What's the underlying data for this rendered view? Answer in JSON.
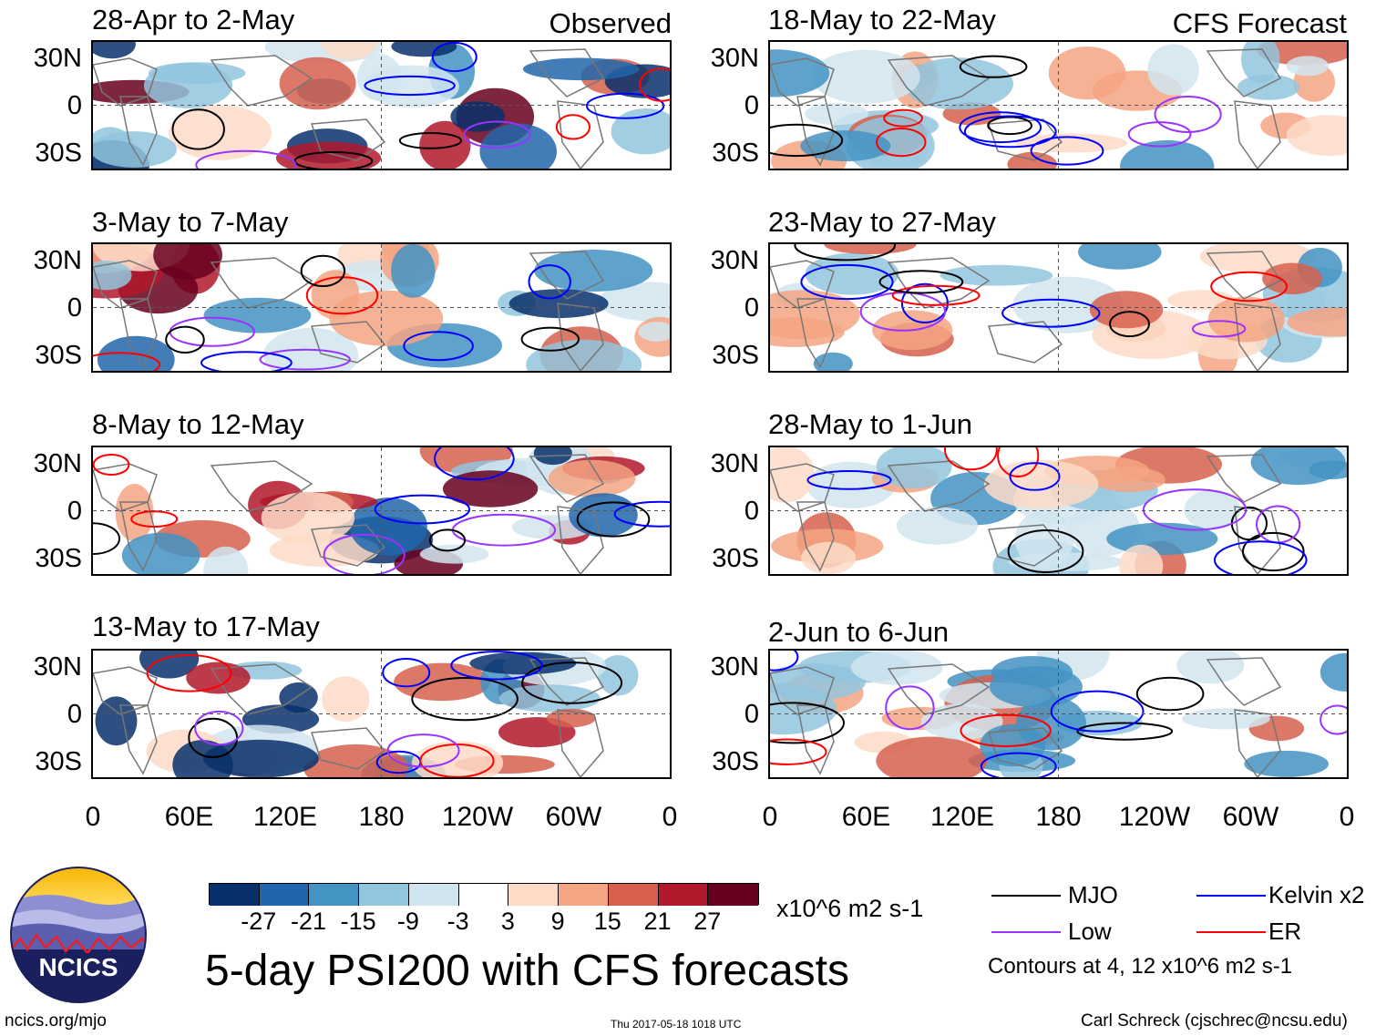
{
  "chart_data": {
    "type": "heatmap",
    "title": "5-day PSI200 with CFS forecasts",
    "variable": "PSI200",
    "units": "x10^6 m2 s-1",
    "observed_label": "Observed",
    "forecast_label": "CFS Forecast",
    "x_ticks": [
      "0",
      "60E",
      "120E",
      "180",
      "120W",
      "60W",
      "0"
    ],
    "y_ticks": [
      "30N",
      "0",
      "30S"
    ],
    "xlim": [
      0,
      360
    ],
    "ylim": [
      -40,
      40
    ],
    "panels_observed": [
      {
        "period": "28-Apr to 2-May"
      },
      {
        "period": "3-May to 7-May"
      },
      {
        "period": "8-May to 12-May"
      },
      {
        "period": "13-May to 17-May"
      }
    ],
    "panels_forecast": [
      {
        "period": "18-May to 22-May"
      },
      {
        "period": "23-May to 27-May"
      },
      {
        "period": "28-May to 1-Jun"
      },
      {
        "period": "2-Jun to 6-Jun"
      }
    ],
    "colorbar": {
      "labels": [
        "-27",
        "-21",
        "-15",
        "-9",
        "-3",
        "3",
        "9",
        "15",
        "21",
        "27"
      ],
      "colors": [
        "#08306b",
        "#2166ac",
        "#4393c3",
        "#92c5de",
        "#d1e5f0",
        "#ffffff",
        "#fddbc7",
        "#f4a582",
        "#d6604d",
        "#b2182b",
        "#67001f"
      ]
    },
    "legend": [
      {
        "label": "MJO",
        "color": "#000000"
      },
      {
        "label": "Kelvin x2",
        "color": "#0000ff"
      },
      {
        "label": "Low",
        "color": "#9933ff"
      },
      {
        "label": "ER",
        "color": "#ff0000"
      }
    ],
    "contour_note": "Contours at 4, 12 x10^6 m2 s-1"
  },
  "logo": {
    "text": "NCICS"
  },
  "footer": {
    "url": "ncics.org/mjo",
    "timestamp": "Thu 2017-05-18 1018 UTC",
    "author": "Carl Schreck (cjschrec@ncsu.edu)"
  }
}
